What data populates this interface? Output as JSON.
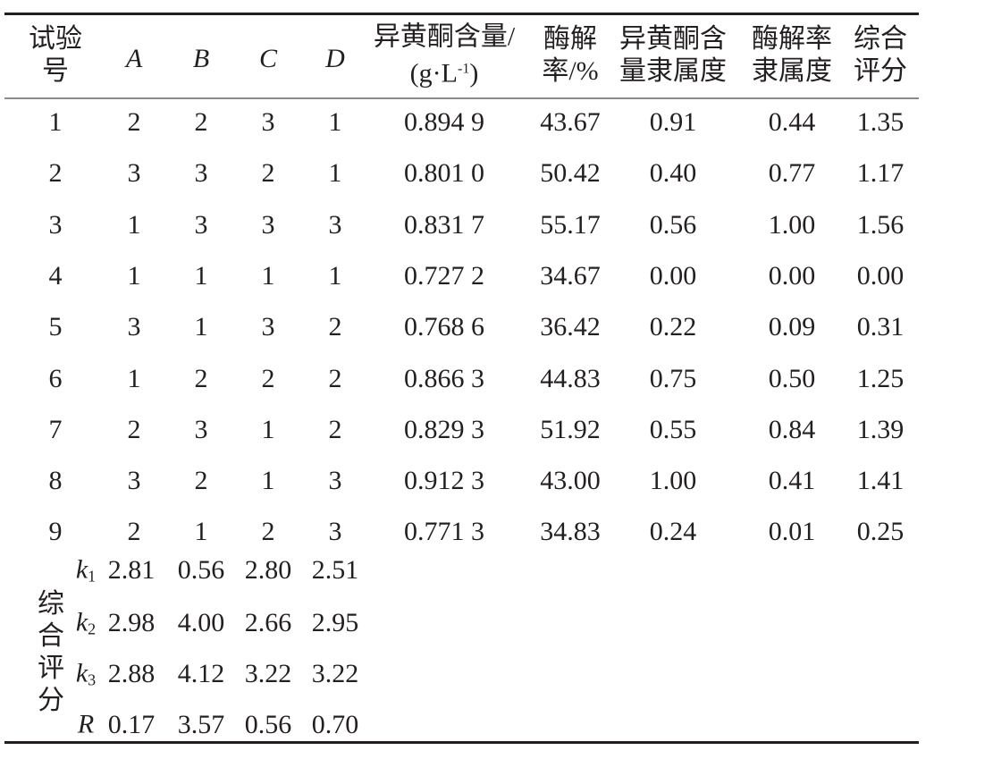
{
  "table": {
    "headers": {
      "trial": [
        "试验",
        "号"
      ],
      "A": "A",
      "B": "B",
      "C": "C",
      "D": "D",
      "isoflavone": {
        "line1": "异黄酮含量/",
        "unit": "(g·L",
        "sup": "-1",
        "close": ")"
      },
      "hydrolysis": [
        "酶解",
        "率/%"
      ],
      "iso_membership": [
        "异黄酮含",
        "量隶属度"
      ],
      "hyd_membership": [
        "酶解率",
        "隶属度"
      ],
      "score": [
        "综合",
        "评分"
      ]
    },
    "rows": [
      [
        "1",
        "2",
        "2",
        "3",
        "1",
        "0.894 9",
        "43.67",
        "0.91",
        "0.44",
        "1.35"
      ],
      [
        "2",
        "3",
        "3",
        "2",
        "1",
        "0.801 0",
        "50.42",
        "0.40",
        "0.77",
        "1.17"
      ],
      [
        "3",
        "1",
        "3",
        "3",
        "3",
        "0.831 7",
        "55.17",
        "0.56",
        "1.00",
        "1.56"
      ],
      [
        "4",
        "1",
        "1",
        "1",
        "1",
        "0.727 2",
        "34.67",
        "0.00",
        "0.00",
        "0.00"
      ],
      [
        "5",
        "3",
        "1",
        "3",
        "2",
        "0.768 6",
        "36.42",
        "0.22",
        "0.09",
        "0.31"
      ],
      [
        "6",
        "1",
        "2",
        "2",
        "2",
        "0.866 3",
        "44.83",
        "0.75",
        "0.50",
        "1.25"
      ],
      [
        "7",
        "2",
        "3",
        "1",
        "2",
        "0.829 3",
        "51.92",
        "0.55",
        "0.84",
        "1.39"
      ],
      [
        "8",
        "3",
        "2",
        "1",
        "3",
        "0.912 3",
        "43.00",
        "1.00",
        "0.41",
        "1.41"
      ],
      [
        "9",
        "2",
        "1",
        "2",
        "3",
        "0.771 3",
        "34.83",
        "0.24",
        "0.01",
        "0.25"
      ]
    ],
    "summary_label": "综合评分",
    "summary": [
      {
        "var": "k",
        "sub": "1",
        "values": [
          "2.81",
          "0.56",
          "2.80",
          "2.51"
        ]
      },
      {
        "var": "k",
        "sub": "2",
        "values": [
          "2.98",
          "4.00",
          "2.66",
          "2.95"
        ]
      },
      {
        "var": "k",
        "sub": "3",
        "values": [
          "2.88",
          "4.12",
          "3.22",
          "3.22"
        ]
      },
      {
        "var": "R",
        "sub": "",
        "values": [
          "0.17",
          "3.57",
          "0.56",
          "0.70"
        ]
      }
    ]
  }
}
